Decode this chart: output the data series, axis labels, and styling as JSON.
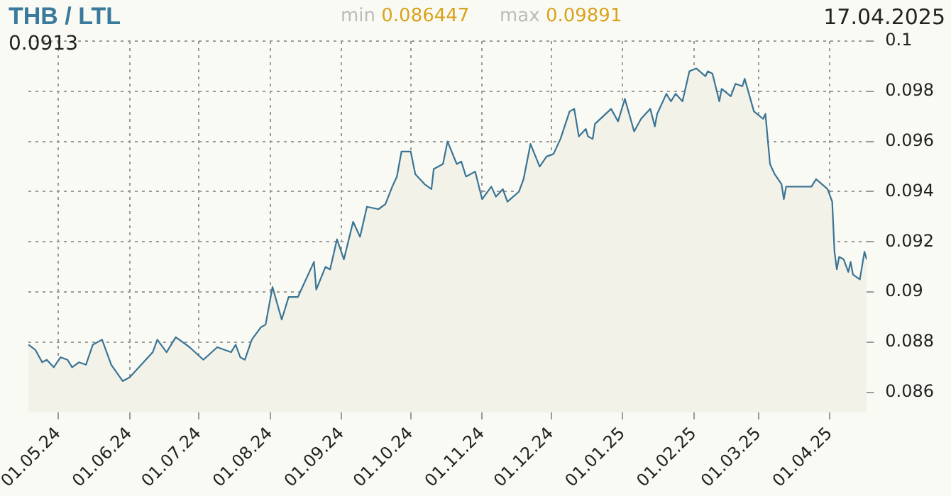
{
  "chart_data": {
    "type": "area",
    "title": "THB / LTL",
    "annotations": [
      "min 0.086447",
      "max 0.09891",
      "17.04.2025",
      "0.0913"
    ],
    "x": [
      "2024-04-18",
      "2024-04-21",
      "2024-04-24",
      "2024-04-26",
      "2024-04-29",
      "2024-05-02",
      "2024-05-05",
      "2024-05-07",
      "2024-05-10",
      "2024-05-13",
      "2024-05-16",
      "2024-05-20",
      "2024-05-24",
      "2024-05-29",
      "2024-06-01",
      "2024-06-06",
      "2024-06-11",
      "2024-06-13",
      "2024-06-17",
      "2024-06-21",
      "2024-06-27",
      "2024-07-03",
      "2024-07-09",
      "2024-07-15",
      "2024-07-17",
      "2024-07-19",
      "2024-07-21",
      "2024-07-24",
      "2024-07-28",
      "2024-07-30",
      "2024-08-02",
      "2024-08-06",
      "2024-08-09",
      "2024-08-13",
      "2024-08-20",
      "2024-08-21",
      "2024-08-25",
      "2024-08-27",
      "2024-08-30",
      "2024-09-02",
      "2024-09-06",
      "2024-09-09",
      "2024-09-12",
      "2024-09-17",
      "2024-09-20",
      "2024-09-23",
      "2024-09-25",
      "2024-09-27",
      "2024-10-01",
      "2024-10-03",
      "2024-10-07",
      "2024-10-10",
      "2024-10-11",
      "2024-10-15",
      "2024-10-17",
      "2024-10-21",
      "2024-10-23",
      "2024-10-25",
      "2024-10-29",
      "2024-11-01",
      "2024-11-05",
      "2024-11-07",
      "2024-11-10",
      "2024-11-12",
      "2024-11-17",
      "2024-11-19",
      "2024-11-22",
      "2024-11-26",
      "2024-11-29",
      "2024-12-02",
      "2024-12-05",
      "2024-12-09",
      "2024-12-11",
      "2024-12-13",
      "2024-12-16",
      "2024-12-17",
      "2024-12-19",
      "2024-12-20",
      "2024-12-27",
      "2024-12-30",
      "2025-01-02",
      "2025-01-06",
      "2025-01-09",
      "2025-01-13",
      "2025-01-15",
      "2025-01-16",
      "2025-01-20",
      "2025-01-22",
      "2025-01-24",
      "2025-01-27",
      "2025-01-30",
      "2025-02-02",
      "2025-02-06",
      "2025-02-07",
      "2025-02-09",
      "2025-02-12",
      "2025-02-13",
      "2025-02-17",
      "2025-02-19",
      "2025-02-22",
      "2025-02-23",
      "2025-02-27",
      "2025-03-03",
      "2025-03-04",
      "2025-03-06",
      "2025-03-08",
      "2025-03-11",
      "2025-03-12",
      "2025-03-13",
      "2025-03-24",
      "2025-03-26",
      "2025-03-31",
      "2025-04-02",
      "2025-04-03",
      "2025-04-04",
      "2025-04-05",
      "2025-04-07",
      "2025-04-09",
      "2025-04-10",
      "2025-04-11",
      "2025-04-14",
      "2025-04-16",
      "2025-04-17"
    ],
    "series": [
      {
        "color": "#3a7494",
        "values": [
          0.0879,
          0.0877,
          0.0872,
          0.0873,
          0.087,
          0.0874,
          0.0873,
          0.087,
          0.0872,
          0.0871,
          0.0879,
          0.0881,
          0.0871,
          0.08645,
          0.0866,
          0.0871,
          0.0876,
          0.0881,
          0.0876,
          0.0882,
          0.0878,
          0.0873,
          0.0878,
          0.0876,
          0.0879,
          0.0874,
          0.0873,
          0.0881,
          0.0886,
          0.0887,
          0.0902,
          0.0889,
          0.0898,
          0.0898,
          0.0912,
          0.0901,
          0.091,
          0.0909,
          0.0921,
          0.0913,
          0.0928,
          0.0922,
          0.0934,
          0.0933,
          0.0935,
          0.0942,
          0.0946,
          0.0956,
          0.0956,
          0.0947,
          0.0943,
          0.0941,
          0.0949,
          0.0951,
          0.096,
          0.0951,
          0.0952,
          0.0946,
          0.0948,
          0.0937,
          0.0942,
          0.0938,
          0.0941,
          0.0936,
          0.094,
          0.0945,
          0.0959,
          0.095,
          0.0954,
          0.0955,
          0.0961,
          0.0972,
          0.0973,
          0.0962,
          0.0965,
          0.0962,
          0.0961,
          0.0967,
          0.0973,
          0.0968,
          0.0977,
          0.0964,
          0.0969,
          0.0973,
          0.0966,
          0.0971,
          0.0979,
          0.0976,
          0.0979,
          0.0976,
          0.0988,
          0.09891,
          0.0986,
          0.0988,
          0.0987,
          0.0976,
          0.0981,
          0.0978,
          0.0983,
          0.0982,
          0.0985,
          0.0972,
          0.0969,
          0.0971,
          0.0951,
          0.0947,
          0.0943,
          0.0937,
          0.0942,
          0.0942,
          0.0945,
          0.0941,
          0.0936,
          0.0916,
          0.0909,
          0.0914,
          0.0913,
          0.0908,
          0.0912,
          0.0907,
          0.0905,
          0.0916,
          0.0913
        ]
      }
    ],
    "xlim": [
      "2024-04-18",
      "2025-04-17"
    ],
    "xticks": [
      {
        "value": "2024-05-01",
        "label": "01.05.24"
      },
      {
        "value": "2024-06-01",
        "label": "01.06.24"
      },
      {
        "value": "2024-07-01",
        "label": "01.07.24"
      },
      {
        "value": "2024-08-01",
        "label": "01.08.24"
      },
      {
        "value": "2024-09-01",
        "label": "01.09.24"
      },
      {
        "value": "2024-10-01",
        "label": "01.10.24"
      },
      {
        "value": "2024-11-01",
        "label": "01.11.24"
      },
      {
        "value": "2024-12-01",
        "label": "01.12.24"
      },
      {
        "value": "2025-01-01",
        "label": "01.01.25"
      },
      {
        "value": "2025-02-01",
        "label": "01.02.25"
      },
      {
        "value": "2025-03-01",
        "label": "01.03.25"
      },
      {
        "value": "2025-04-01",
        "label": "01.04.25"
      }
    ],
    "ylim": [
      0.0852,
      0.1
    ],
    "yticks": [
      0.086,
      0.088,
      0.09,
      0.092,
      0.094,
      0.096,
      0.098,
      0.1
    ],
    "grid": true
  }
}
